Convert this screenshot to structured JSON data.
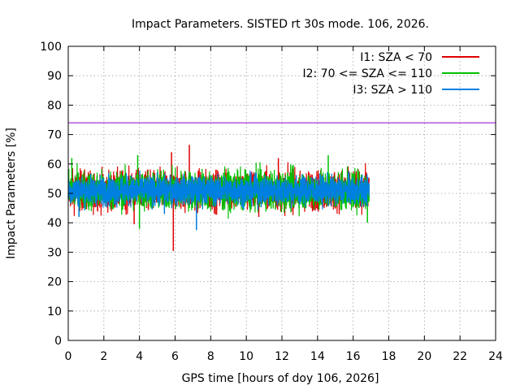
{
  "chart_data": {
    "type": "line",
    "title": "Impact Parameters. SISTED rt 30s mode. 106, 2026.",
    "xlabel": "GPS time [hours of doy 106, 2026]",
    "ylabel": "Impact Parameters [%]",
    "xlim": [
      0,
      24
    ],
    "ylim": [
      0,
      100
    ],
    "xticks": [
      0,
      2,
      4,
      6,
      8,
      10,
      12,
      14,
      16,
      18,
      20,
      22,
      24
    ],
    "yticks": [
      0,
      10,
      20,
      30,
      40,
      50,
      60,
      70,
      80,
      90,
      100
    ],
    "grid": true,
    "legend_position": "top-right",
    "threshold": {
      "value": 74,
      "color": "#9400d3"
    },
    "series": [
      {
        "name": "I1: SZA < 70",
        "color": "#e00000",
        "x_range": [
          0,
          16.9
        ],
        "center": 51,
        "spread": 6,
        "spikes": [
          [
            5.9,
            30.4
          ],
          [
            6.8,
            66.5
          ],
          [
            5.8,
            64
          ],
          [
            3.7,
            39.5
          ],
          [
            11.8,
            62
          ],
          [
            10.7,
            42
          ]
        ]
      },
      {
        "name": "I2: 70 <= SZA <= 110",
        "color": "#00c000",
        "x_range": [
          0,
          16.9
        ],
        "center": 51,
        "spread": 6,
        "spikes": [
          [
            4.0,
            38
          ],
          [
            14.6,
            63
          ],
          [
            16.8,
            40
          ],
          [
            0.2,
            62
          ],
          [
            3.9,
            63
          ]
        ]
      },
      {
        "name": "I3: SZA > 110",
        "color": "#0080e0",
        "x_range": [
          0,
          16.9
        ],
        "center": 51,
        "spread": 4.5,
        "spikes": [
          [
            7.2,
            37.5
          ],
          [
            0.6,
            42
          ],
          [
            5.4,
            43
          ]
        ]
      }
    ]
  }
}
